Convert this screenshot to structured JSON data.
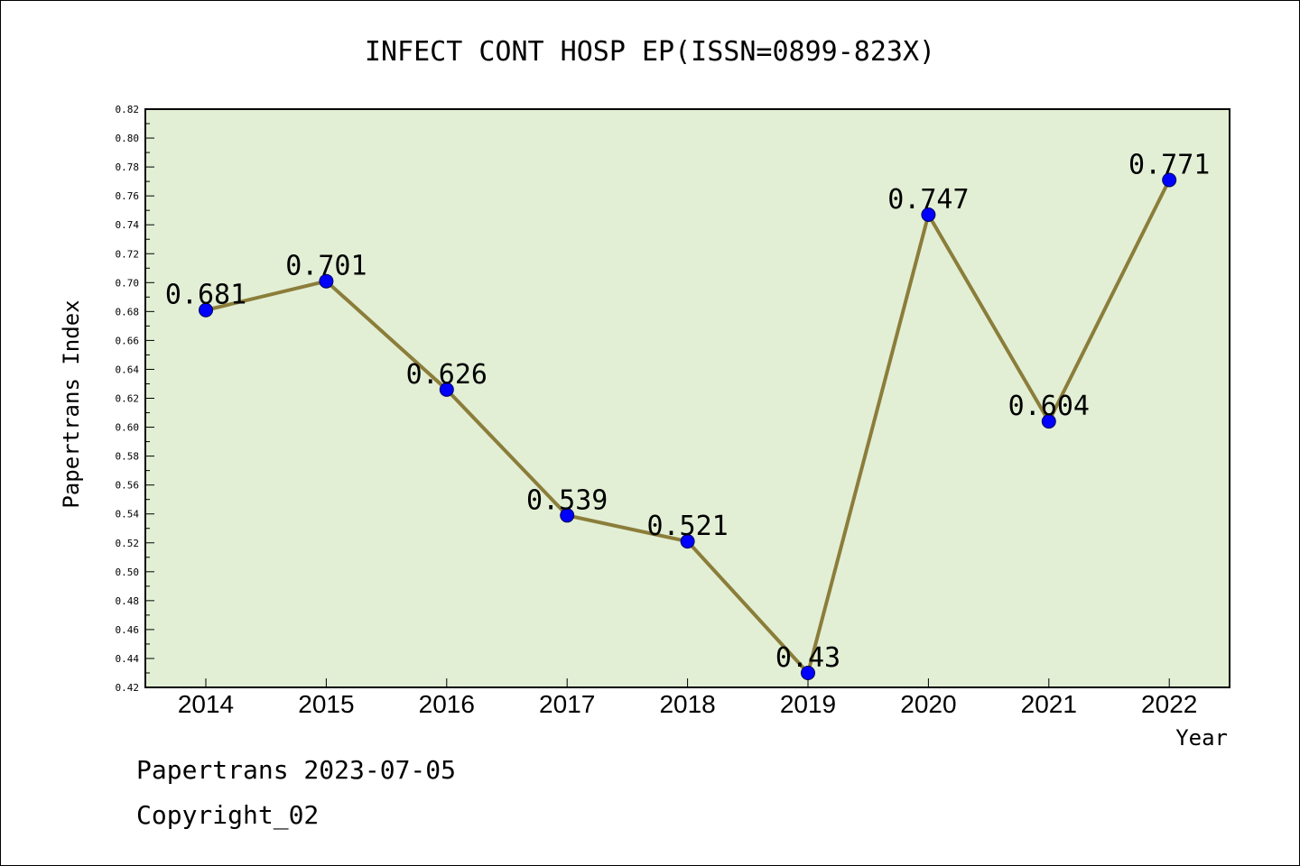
{
  "chart_data": {
    "type": "line",
    "title": "INFECT CONT HOSP EP(ISSN=0899-823X)",
    "xlabel": "Year",
    "ylabel": "Papertrans Index",
    "categories": [
      "2014",
      "2015",
      "2016",
      "2017",
      "2018",
      "2019",
      "2020",
      "2021",
      "2022"
    ],
    "values": [
      0.681,
      0.701,
      0.626,
      0.539,
      0.521,
      0.43,
      0.747,
      0.604,
      0.771
    ],
    "data_labels": [
      "0.681",
      "0.701",
      "0.626",
      "0.539",
      "0.521",
      "0.43",
      "0.747",
      "0.604",
      "0.771"
    ],
    "ylim": [
      0.42,
      0.82
    ],
    "y_ticks": [
      "0.42",
      "0.44",
      "0.46",
      "0.48",
      "0.50",
      "0.52",
      "0.54",
      "0.56",
      "0.58",
      "0.60",
      "0.62",
      "0.64",
      "0.66",
      "0.68",
      "0.70",
      "0.72",
      "0.74",
      "0.76",
      "0.78",
      "0.80",
      "0.82"
    ],
    "grid": false,
    "colors": {
      "plot_background": "#e2efd5",
      "line": "#8b7d3a",
      "marker": "#0000ff"
    }
  },
  "footer": {
    "date_text": "Papertrans 2023-07-05",
    "copyright_text": "Copyright_02"
  }
}
